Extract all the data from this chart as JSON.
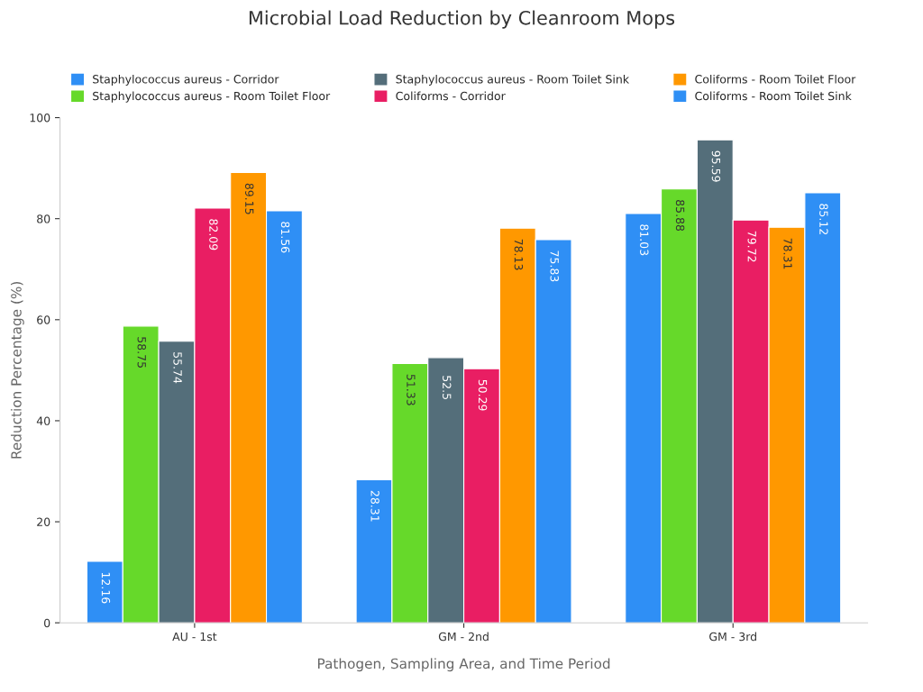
{
  "chart_data": {
    "type": "bar",
    "title": "Microbial Load Reduction by Cleanroom Mops",
    "xlabel": "Pathogen, Sampling Area, and Time Period",
    "ylabel": "Reduction Percentage (%)",
    "categories": [
      "AU - 1st",
      "GM - 2nd",
      "GM - 3rd"
    ],
    "series": [
      {
        "name": "Staphylococcus aureus - Corridor",
        "color": "#2f8ff5",
        "values": [
          12.16,
          28.31,
          81.03
        ]
      },
      {
        "name": "Staphylococcus aureus - Room Toilet Floor",
        "color": "#66d92a",
        "values": [
          58.75,
          51.33,
          85.88
        ]
      },
      {
        "name": "Staphylococcus aureus - Room Toilet Sink",
        "color": "#546e7a",
        "values": [
          55.74,
          52.5,
          95.59
        ]
      },
      {
        "name": "Coliforms - Corridor",
        "color": "#e91e63",
        "values": [
          82.09,
          50.29,
          79.72
        ]
      },
      {
        "name": "Coliforms - Room Toilet Floor",
        "color": "#ff9800",
        "values": [
          89.15,
          78.13,
          78.31
        ]
      },
      {
        "name": "Coliforms - Room Toilet Sink",
        "color": "#2f8ff5",
        "values": [
          81.56,
          75.83,
          85.12
        ]
      }
    ],
    "ylim": [
      0,
      100
    ],
    "yticks": [
      0,
      20,
      40,
      60,
      80,
      100
    ],
    "data_labels": true,
    "legend": "top",
    "grid": false
  }
}
